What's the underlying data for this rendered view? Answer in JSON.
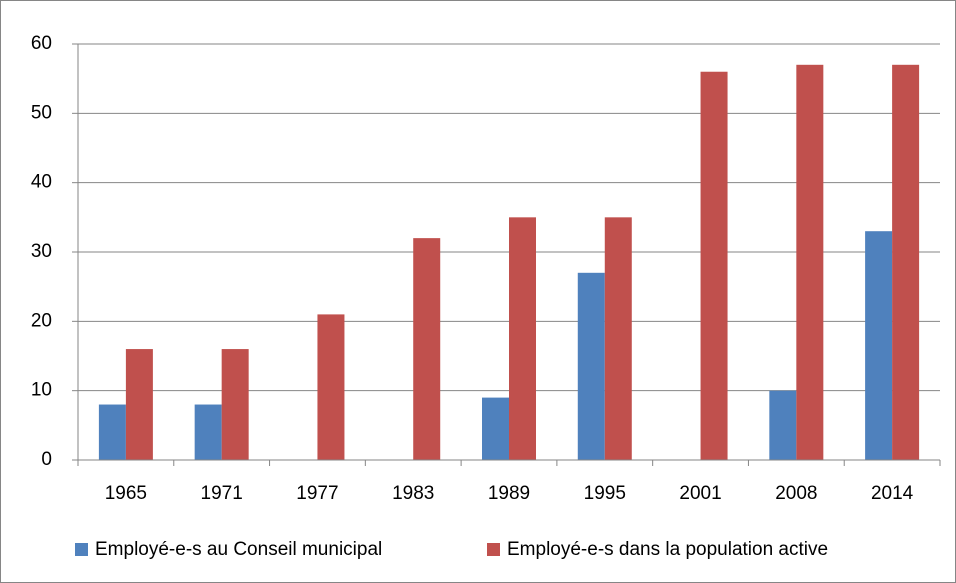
{
  "chart_data": {
    "type": "bar",
    "categories": [
      "1965",
      "1971",
      "1977",
      "1983",
      "1989",
      "1995",
      "2001",
      "2008",
      "2014"
    ],
    "series": [
      {
        "name": "Employé-e-s au Conseil municipal",
        "color": "#4f81bd",
        "values": [
          8,
          8,
          null,
          null,
          9,
          27,
          null,
          10,
          33
        ]
      },
      {
        "name": "Employé-e-s dans la population active",
        "color": "#c0504d",
        "values": [
          16,
          16,
          21,
          32,
          35,
          35,
          56,
          57,
          57
        ]
      }
    ],
    "ylim": [
      0,
      60
    ],
    "yticks": [
      0,
      10,
      20,
      30,
      40,
      50,
      60
    ],
    "grid": true,
    "legend": "bottom"
  }
}
